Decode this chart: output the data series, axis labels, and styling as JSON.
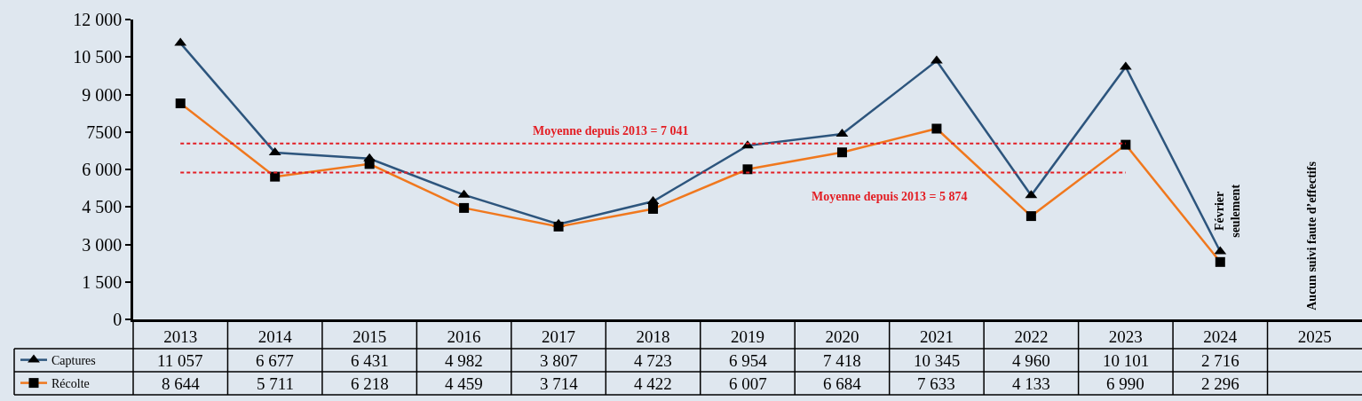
{
  "chart_data": {
    "type": "line",
    "categories": [
      "2013",
      "2014",
      "2015",
      "2016",
      "2017",
      "2018",
      "2019",
      "2020",
      "2021",
      "2022",
      "2023",
      "2024",
      "2025"
    ],
    "series": [
      {
        "name": "Captures",
        "color": "#2d557d",
        "marker": "triangle",
        "values": [
          11057,
          6677,
          6431,
          4982,
          3807,
          4723,
          6954,
          7418,
          10345,
          4960,
          10101,
          2716,
          null
        ],
        "value_labels": [
          "11 057",
          "6 677",
          "6 431",
          "4 982",
          "3 807",
          "4 723",
          "6 954",
          "7 418",
          "10 345",
          "4 960",
          "10 101",
          "2 716",
          null
        ]
      },
      {
        "name": "Récolte",
        "color": "#f0781e",
        "marker": "square",
        "values": [
          8644,
          5711,
          6218,
          4459,
          3714,
          4422,
          6007,
          6684,
          7633,
          4133,
          6990,
          2296,
          null
        ],
        "value_labels": [
          "8 644",
          "5 711",
          "6 218",
          "4 459",
          "3 714",
          "4 422",
          "6 007",
          "6 684",
          "7 633",
          "4 133",
          "6 990",
          "2 296",
          null
        ]
      }
    ],
    "ylim": [
      0,
      12000
    ],
    "yticks": [
      0,
      {
        "value": 1500,
        "label": "1 500"
      },
      {
        "value": 3000,
        "label": "3 000"
      },
      {
        "value": 4500,
        "label": "4 500"
      },
      {
        "value": 6000,
        "label": "6 000"
      },
      7500,
      {
        "value": 9000,
        "label": "9 000"
      },
      {
        "value": 10500,
        "label": "10 500"
      },
      {
        "value": 12000,
        "label": "12 000"
      }
    ],
    "ref_lines": [
      {
        "axis": "y",
        "value": 7041,
        "label": "Moyenne depuis 2013 = 7 041",
        "color": "#e31e24",
        "line_style": "dashed"
      },
      {
        "axis": "y",
        "value": 5874,
        "label": "Moyenne depuis 2013 = 5 874",
        "color": "#e31e24",
        "line_style": "dashed"
      }
    ],
    "annotations": [
      {
        "text": "Février\nseulement",
        "x": "2024",
        "y": 2716
      },
      "Aucun suivi faute d’effectifs"
    ],
    "legend": "bottom left"
  }
}
